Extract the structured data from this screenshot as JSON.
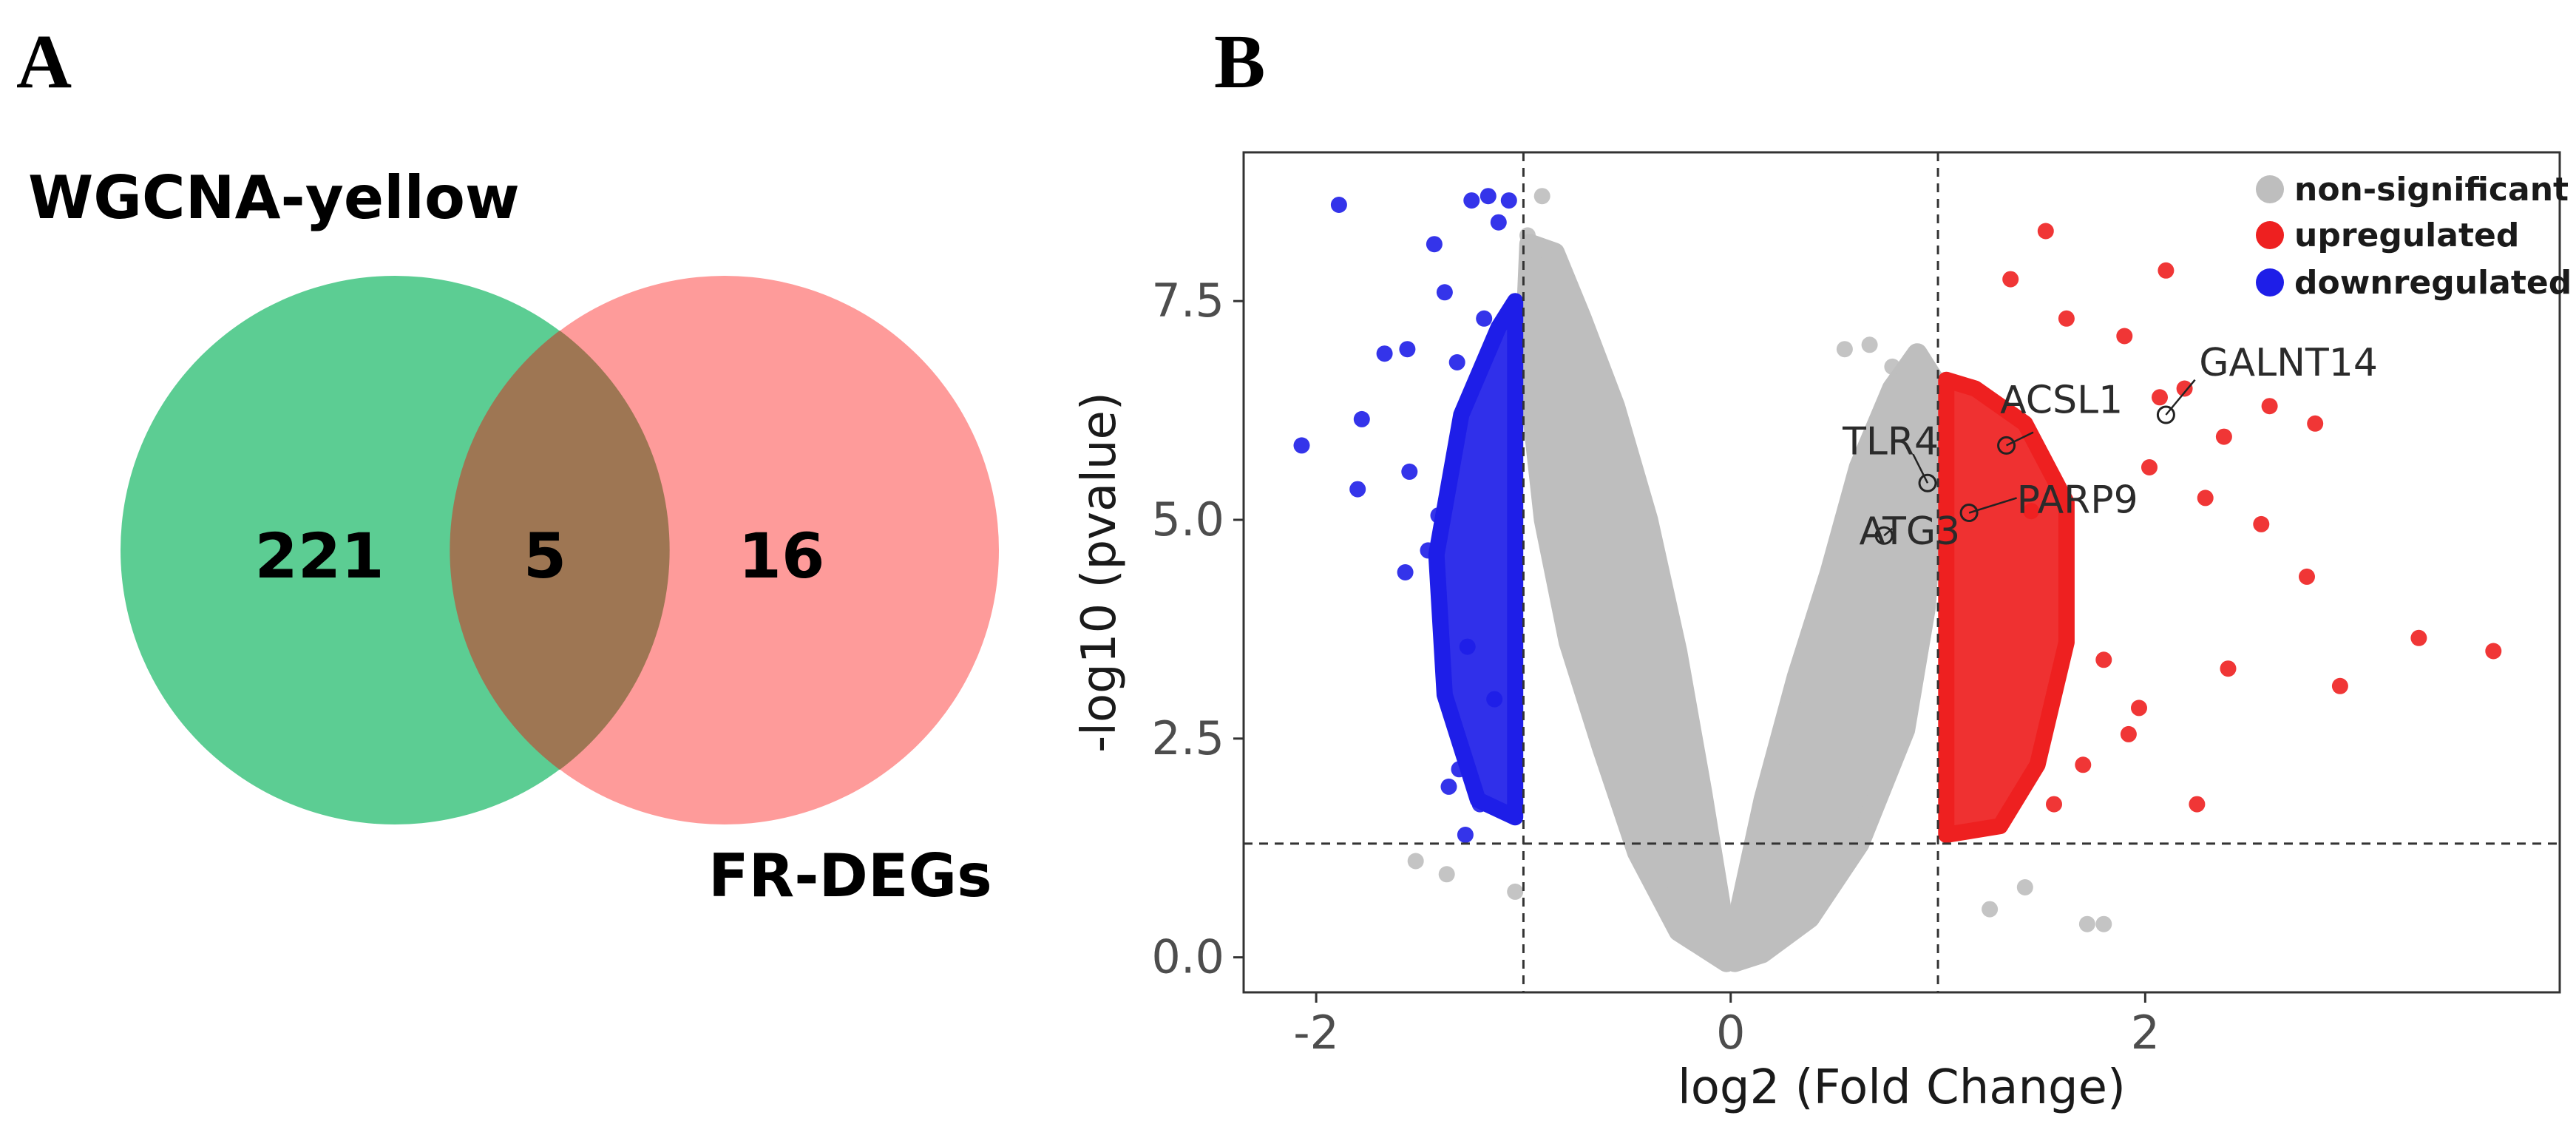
{
  "panels": {
    "a": "A",
    "b": "B"
  },
  "chart_data": [
    {
      "type": "venn",
      "sets": [
        {
          "name": "WGCNA-yellow",
          "color": "#5ccd93"
        },
        {
          "name": "FR-DEGs",
          "color": "#fe9b9a"
        }
      ],
      "intersection_color": "#9e7653",
      "counts": {
        "left_only": "221",
        "intersection": "5",
        "right_only": "16"
      }
    },
    {
      "type": "scatter",
      "title": "",
      "xlabel": "log2 (Fold Change)",
      "ylabel": "-log10 (pvalue)",
      "xlim": [
        -2.35,
        4.0
      ],
      "ylim": [
        -0.4,
        9.2
      ],
      "xticks": [
        "-2",
        "0",
        "2"
      ],
      "xtick_values": [
        -2,
        0,
        2
      ],
      "yticks": [
        "0.0",
        "2.5",
        "5.0",
        "7.5"
      ],
      "ytick_values": [
        0.0,
        2.5,
        5.0,
        7.5
      ],
      "thresholds": {
        "log2fc_lower": -1,
        "log2fc_upper": 1,
        "neg_log10_p": 1.3
      },
      "legend": {
        "position": "top-right",
        "entries": [
          {
            "label": "non-significant",
            "color": "#bebebe"
          },
          {
            "label": "upregulated",
            "color": "#ee2020"
          },
          {
            "label": "downregulated",
            "color": "#1e1ee8"
          }
        ]
      },
      "series": [
        {
          "name": "downregulated",
          "points": [
            [
              -2.07,
              5.85
            ],
            [
              -1.89,
              8.6
            ],
            [
              -1.8,
              5.35
            ],
            [
              -1.78,
              6.15
            ],
            [
              -1.67,
              6.9
            ],
            [
              -1.56,
              6.95
            ],
            [
              -1.55,
              5.55
            ],
            [
              -1.57,
              4.4
            ],
            [
              -1.43,
              8.15
            ],
            [
              -1.38,
              7.6
            ],
            [
              -1.32,
              6.8
            ],
            [
              -1.25,
              8.65
            ],
            [
              -1.17,
              8.7
            ],
            [
              -1.12,
              8.4
            ],
            [
              -1.07,
              8.65
            ],
            [
              -1.27,
              3.55
            ],
            [
              -1.31,
              2.15
            ],
            [
              -1.28,
              1.4
            ],
            [
              -1.36,
              1.95
            ],
            [
              -1.46,
              4.65
            ],
            [
              -1.21,
              1.75
            ],
            [
              -1.14,
              2.95
            ],
            [
              -1.41,
              5.05
            ],
            [
              -1.19,
              7.3
            ]
          ]
        },
        {
          "name": "upregulated",
          "points": [
            [
              1.35,
              7.75
            ],
            [
              1.52,
              8.3
            ],
            [
              2.1,
              7.85
            ],
            [
              1.62,
              7.3
            ],
            [
              2.19,
              6.5
            ],
            [
              2.6,
              6.3
            ],
            [
              2.82,
              6.1
            ],
            [
              2.38,
              5.95
            ],
            [
              2.56,
              4.95
            ],
            [
              2.29,
              5.25
            ],
            [
              2.78,
              4.35
            ],
            [
              3.32,
              3.65
            ],
            [
              3.68,
              3.5
            ],
            [
              2.94,
              3.1
            ],
            [
              2.4,
              3.3
            ],
            [
              2.25,
              1.75
            ],
            [
              1.8,
              3.4
            ],
            [
              1.7,
              2.2
            ],
            [
              1.56,
              1.75
            ],
            [
              1.97,
              2.85
            ],
            [
              2.07,
              6.4
            ],
            [
              1.9,
              7.1
            ],
            [
              1.45,
              5.1
            ],
            [
              2.02,
              5.6
            ],
            [
              1.92,
              2.55
            ]
          ]
        },
        {
          "name": "non-significant",
          "points": [
            [
              -0.91,
              8.7
            ],
            [
              -0.98,
              8.25
            ],
            [
              -0.88,
              7.95
            ],
            [
              -1.52,
              1.1
            ],
            [
              -1.37,
              0.95
            ],
            [
              -1.04,
              0.75
            ],
            [
              1.25,
              0.55
            ],
            [
              1.42,
              0.8
            ],
            [
              1.72,
              0.38
            ],
            [
              1.8,
              0.38
            ],
            [
              0.55,
              6.95
            ],
            [
              0.67,
              7.0
            ],
            [
              0.78,
              6.75
            ],
            [
              0.88,
              6.55
            ]
          ]
        }
      ],
      "labeled_genes": [
        {
          "gene": "GALNT14",
          "x": 2.1,
          "y": 6.2
        },
        {
          "gene": "ACSL1",
          "x": 1.33,
          "y": 5.85
        },
        {
          "gene": "TLR4",
          "x": 0.95,
          "y": 5.42
        },
        {
          "gene": "PARP9",
          "x": 1.15,
          "y": 5.08
        },
        {
          "gene": "ATG3",
          "x": 0.74,
          "y": 4.82
        }
      ]
    }
  ]
}
